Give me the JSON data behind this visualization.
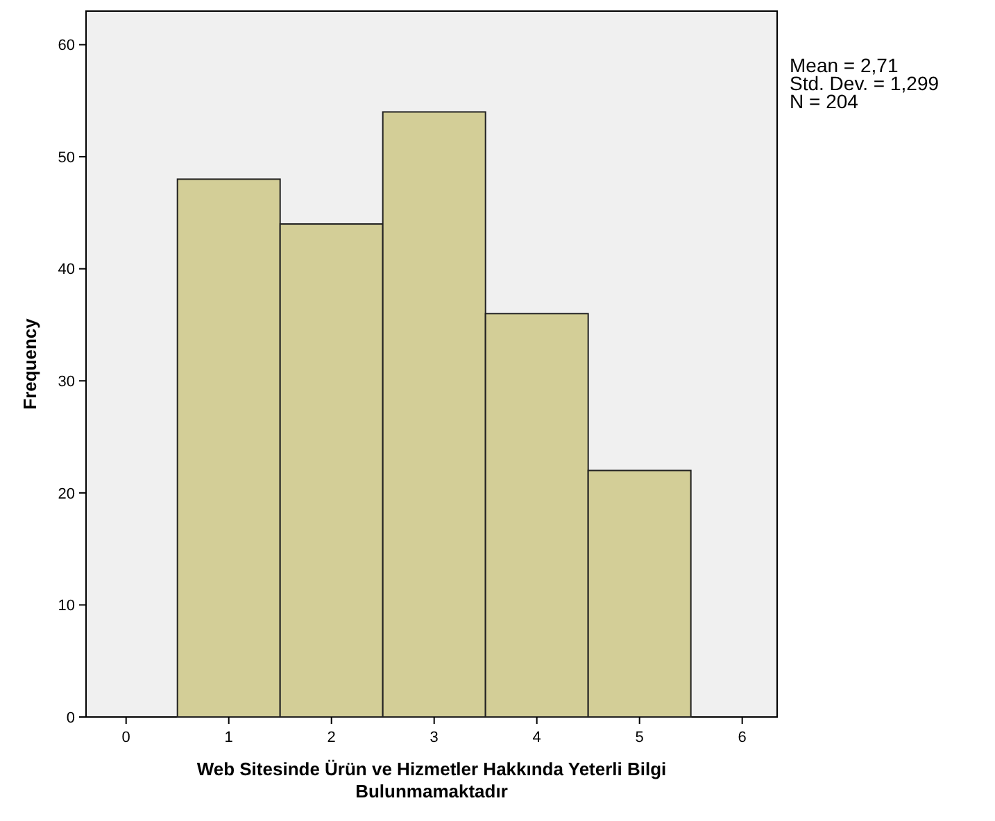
{
  "chart_data": {
    "type": "histogram",
    "xlabel": "Web Sitesinde Ürün ve Hizmetler Hakkında Yeterli Bilgi\nBulunmamaktadır",
    "ylabel": "Frequency",
    "bins": [
      0.5,
      1.5,
      2.5,
      3.5,
      4.5,
      5.5
    ],
    "values": [
      48,
      44,
      54,
      36,
      22
    ],
    "color": "#d3ce97",
    "xlim": [
      -0.39,
      6.34
    ],
    "xticks": [
      0,
      1,
      2,
      3,
      4,
      5,
      6
    ],
    "ylim": [
      0,
      63
    ],
    "yticks": [
      0,
      10,
      20,
      30,
      40,
      50,
      60
    ],
    "grid": false,
    "annotations": [
      "Mean = 2,71",
      "Std. Dev. = 1,299",
      "N = 204"
    ]
  }
}
